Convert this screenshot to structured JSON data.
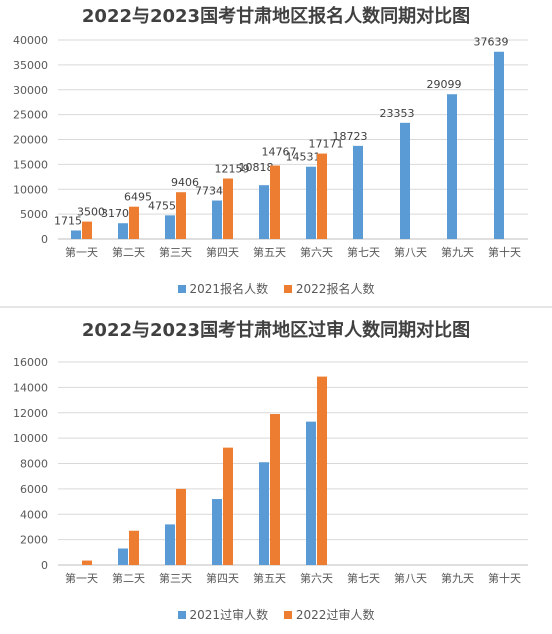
{
  "chart_data": [
    {
      "type": "bar",
      "title": "2022与2023国考甘肃地区报名人数同期对比图",
      "categories": [
        "第一天",
        "第二天",
        "第三天",
        "第四天",
        "第五天",
        "第六天",
        "第七天",
        "第八天",
        "第九天",
        "第十天"
      ],
      "series": [
        {
          "name": "2021报名人数",
          "color": "#5b9bd5",
          "values": [
            1715,
            3170,
            4755,
            7734,
            10818,
            14531,
            18723,
            23353,
            29099,
            37639
          ]
        },
        {
          "name": "2022报名人数",
          "color": "#ed7d31",
          "values": [
            3500,
            6495,
            9406,
            12159,
            14767,
            17171,
            null,
            null,
            null,
            null
          ]
        }
      ],
      "data_labels": [
        [
          "1715",
          "3170",
          "4755",
          "7734",
          "10818",
          "14531",
          "18723",
          "23353",
          "29099",
          "37639"
        ],
        [
          "3500",
          "6495",
          "9406",
          "12159",
          "14767",
          "17171",
          null,
          null,
          null,
          null
        ]
      ],
      "y_ticks": [
        "0",
        "5000",
        "10000",
        "15000",
        "20000",
        "25000",
        "30000",
        "35000",
        "40000"
      ],
      "ylim": [
        0,
        40000
      ],
      "grid": true,
      "legend_position": "bottom"
    },
    {
      "type": "bar",
      "title": "2022与2023国考甘肃地区过审人数同期对比图",
      "categories": [
        "第一天",
        "第二天",
        "第三天",
        "第四天",
        "第五天",
        "第六天",
        "第七天",
        "第八天",
        "第九天",
        "第十天"
      ],
      "series": [
        {
          "name": "2021过审人数",
          "color": "#5b9bd5",
          "values": [
            0,
            1300,
            3200,
            5200,
            8100,
            11300,
            null,
            null,
            null,
            null
          ]
        },
        {
          "name": "2022过审人数",
          "color": "#ed7d31",
          "values": [
            350,
            2700,
            6000,
            9250,
            11900,
            14850,
            null,
            null,
            null,
            null
          ]
        }
      ],
      "y_ticks": [
        "0",
        "2000",
        "4000",
        "6000",
        "8000",
        "10000",
        "12000",
        "14000",
        "16000"
      ],
      "ylim": [
        0,
        16000
      ],
      "grid": true,
      "legend_position": "bottom"
    }
  ]
}
